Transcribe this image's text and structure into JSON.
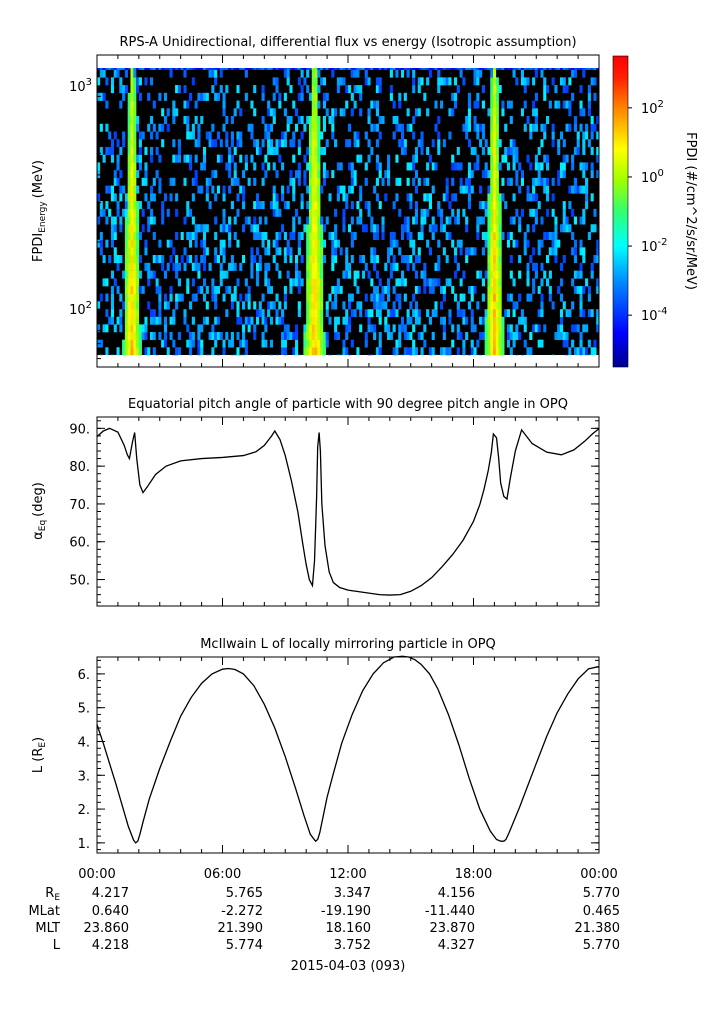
{
  "chart_data": [
    {
      "type": "heatmap",
      "title": "RPS-A Unidirectional, differential flux vs energy (Isotropic assumption)",
      "ylabel_main": "FPDI",
      "ylabel_sub": "Energy",
      "ylabel_unit": "(MeV)",
      "yscale": "log",
      "ylim": [
        55,
        1380
      ],
      "yticks": [
        {
          "value": 100,
          "base": "10",
          "exp": "2"
        },
        {
          "value": 1000,
          "base": "10",
          "exp": "3"
        }
      ],
      "xlim": [
        0,
        24
      ],
      "energy_bins": [
        60,
        65,
        70,
        76,
        82,
        89,
        96,
        104,
        113,
        122,
        132,
        143,
        155,
        168,
        182,
        197,
        213,
        231,
        250,
        271,
        293,
        318,
        344,
        373,
        404,
        437,
        474,
        513,
        556,
        602,
        652,
        706,
        765,
        828,
        897,
        972,
        1053,
        1140,
        1235,
        1337
      ],
      "belt_crossings_hours": [
        [
          1.25,
          2.1
        ],
        [
          9.9,
          10.9
        ],
        [
          18.55,
          19.45
        ]
      ],
      "colorbar": {
        "label": "FPDI (#/cm^2/s/sr/MeV)",
        "scale": "log",
        "range_log10": [
          -5.5,
          3.5
        ],
        "ticks": [
          {
            "value": 2,
            "base": "10",
            "exp": "2"
          },
          {
            "value": 0,
            "base": "10",
            "exp": "0"
          },
          {
            "value": -2,
            "base": "10",
            "exp": "-2"
          },
          {
            "value": -4,
            "base": "10",
            "exp": "-4"
          }
        ]
      }
    },
    {
      "type": "line",
      "title": "Equatorial pitch angle of particle with 90 degree pitch angle in OPQ",
      "ylabel_main": "α",
      "ylabel_sub": "Eq",
      "ylabel_unit": "(deg)",
      "ylim": [
        43,
        93
      ],
      "yticks": [
        "50.",
        "60.",
        "70.",
        "80.",
        "90."
      ],
      "ytick_values": [
        50,
        60,
        70,
        80,
        90
      ],
      "xlim": [
        0,
        24
      ],
      "series": [
        {
          "x": [
            0,
            0.3,
            0.6,
            1.0,
            1.3,
            1.45,
            1.55,
            1.6,
            1.7,
            1.8,
            1.9,
            2.05,
            2.2,
            2.4,
            2.8,
            3.3,
            4,
            5,
            6,
            7,
            7.6,
            8,
            8.35,
            8.5,
            8.75,
            9.0,
            9.3,
            9.6,
            9.85,
            10.0,
            10.15,
            10.3,
            10.4,
            10.5,
            10.55,
            10.62,
            10.68,
            10.75,
            10.9,
            11.1,
            11.3,
            11.6,
            12.0,
            12.5,
            13,
            13.5,
            14.0,
            14.5,
            15,
            15.5,
            16,
            16.5,
            17,
            17.5,
            18,
            18.3,
            18.5,
            18.7,
            18.85,
            18.95,
            19.1,
            19.2,
            19.3,
            19.45,
            19.6,
            19.75,
            20,
            20.3,
            20.8,
            21.5,
            22.2,
            22.8,
            23.3,
            23.7,
            24
          ],
          "y": [
            87.8,
            89.3,
            90.0,
            89.0,
            85.5,
            83.0,
            82.0,
            83.5,
            86.5,
            88.9,
            82.0,
            75.0,
            73.0,
            74.5,
            77.8,
            80.0,
            81.4,
            82.0,
            82.3,
            82.8,
            83.8,
            85.5,
            88.0,
            89.3,
            87.0,
            82.8,
            76.0,
            68.0,
            59.0,
            54.0,
            50.0,
            48.4,
            55.0,
            72.0,
            85.0,
            88.9,
            84.0,
            70.0,
            59.0,
            52.0,
            49.2,
            47.9,
            47.2,
            46.8,
            46.4,
            46.0,
            45.9,
            46.0,
            46.9,
            48.4,
            50.5,
            53.4,
            56.6,
            60.4,
            65.4,
            69.8,
            73.8,
            78.7,
            83.5,
            88.5,
            87.5,
            82.3,
            75.5,
            72.0,
            71.3,
            76.5,
            84.0,
            89.6,
            86.0,
            83.7,
            83.0,
            84.3,
            86.5,
            88.6,
            89.9
          ]
        }
      ]
    },
    {
      "type": "line",
      "title": "McIlwain L of locally mirroring particle in OPQ",
      "ylabel_main": "L (R",
      "ylabel_sub": "E",
      "ylabel_unit": ")",
      "ylim": [
        0.7,
        6.5
      ],
      "yticks": [
        "1.",
        "2.",
        "3.",
        "4.",
        "5.",
        "6."
      ],
      "ytick_values": [
        1,
        2,
        3,
        4,
        5,
        6
      ],
      "xlim": [
        0,
        24
      ],
      "series": [
        {
          "x": [
            0,
            0.3,
            0.6,
            0.9,
            1.2,
            1.5,
            1.75,
            1.85,
            1.95,
            2.05,
            2.2,
            2.5,
            3,
            3.5,
            4,
            4.5,
            5,
            5.5,
            6,
            6.3,
            6.6,
            7,
            7.5,
            8,
            8.5,
            9,
            9.5,
            9.9,
            10.2,
            10.45,
            10.55,
            10.65,
            10.75,
            10.85,
            11,
            11.3,
            11.7,
            12.2,
            12.7,
            13.2,
            13.7,
            14.2,
            14.6,
            14.9,
            15.2,
            15.5,
            15.9,
            16.3,
            16.8,
            17.3,
            17.8,
            18.3,
            18.8,
            19.1,
            19.3,
            19.45,
            19.55,
            19.7,
            19.9,
            20.2,
            20.6,
            21,
            21.5,
            22,
            22.5,
            23,
            23.5,
            24
          ],
          "y": [
            4.5,
            3.95,
            3.35,
            2.75,
            2.12,
            1.48,
            1.08,
            1.0,
            1.05,
            1.25,
            1.62,
            2.3,
            3.2,
            4.0,
            4.75,
            5.3,
            5.72,
            6.0,
            6.14,
            6.16,
            6.13,
            6.0,
            5.65,
            5.1,
            4.4,
            3.55,
            2.6,
            1.8,
            1.25,
            1.05,
            1.1,
            1.3,
            1.6,
            1.9,
            2.35,
            3.05,
            3.95,
            4.8,
            5.5,
            6.0,
            6.33,
            6.5,
            6.52,
            6.5,
            6.42,
            6.28,
            6.0,
            5.55,
            4.8,
            3.9,
            2.9,
            2.0,
            1.35,
            1.1,
            1.05,
            1.05,
            1.1,
            1.3,
            1.6,
            2.05,
            2.7,
            3.35,
            4.15,
            4.85,
            5.4,
            5.85,
            6.15,
            6.22
          ]
        }
      ]
    }
  ],
  "x_axis": {
    "ticks": [
      "00:00",
      "06:00",
      "12:00",
      "18:00",
      "00:00"
    ],
    "tick_hours": [
      0,
      6,
      12,
      18,
      24
    ],
    "date_label": "2015-04-03 (093)"
  },
  "ephemeris": {
    "rows": [
      {
        "label": "R",
        "label_sub": "E",
        "values": [
          "4.217",
          "5.765",
          "3.347",
          "4.156",
          "5.770"
        ]
      },
      {
        "label": "MLat",
        "label_sub": "",
        "values": [
          "0.640",
          "-2.272",
          "-19.190",
          "-11.440",
          "0.465"
        ]
      },
      {
        "label": "MLT",
        "label_sub": "",
        "values": [
          "23.860",
          "21.390",
          "18.160",
          "23.870",
          "21.380"
        ]
      },
      {
        "label": "L",
        "label_sub": "",
        "values": [
          "4.218",
          "5.774",
          "3.752",
          "4.327",
          "5.770"
        ]
      }
    ]
  }
}
